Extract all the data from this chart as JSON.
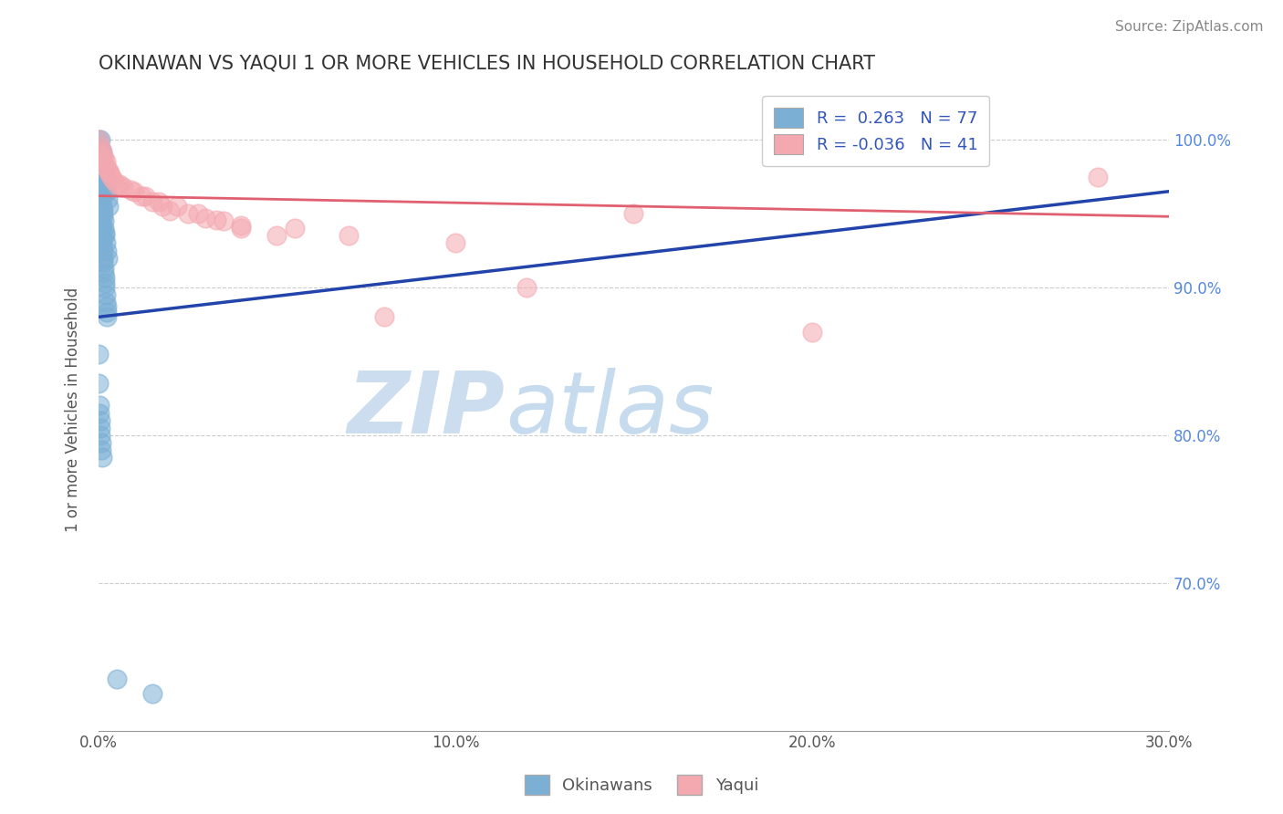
{
  "title": "OKINAWAN VS YAQUI 1 OR MORE VEHICLES IN HOUSEHOLD CORRELATION CHART",
  "source_text": "Source: ZipAtlas.com",
  "ylabel": "1 or more Vehicles in Household",
  "xlim": [
    0.0,
    30.0
  ],
  "ylim": [
    60.0,
    103.5
  ],
  "xticks": [
    0.0,
    10.0,
    20.0,
    30.0
  ],
  "yticks_right": [
    70.0,
    80.0,
    90.0,
    100.0
  ],
  "okinawan_R": 0.263,
  "okinawan_N": 77,
  "yaqui_R": -0.036,
  "yaqui_N": 41,
  "okinawan_color": "#7bafd4",
  "yaqui_color": "#f4a8b0",
  "okinawan_line_color": "#2244aa",
  "yaqui_line_color": "#e06070",
  "legend_text_color": "#3355bb",
  "watermark_color": "#ccddf0",
  "background_color": "#ffffff",
  "grid_color": "#cccccc",
  "title_color": "#333333",
  "ok_x": [
    0.0,
    0.0,
    0.0,
    0.0,
    0.05,
    0.05,
    0.07,
    0.08,
    0.1,
    0.1,
    0.12,
    0.13,
    0.15,
    0.15,
    0.17,
    0.18,
    0.2,
    0.22,
    0.25,
    0.27,
    0.0,
    0.02,
    0.03,
    0.04,
    0.05,
    0.06,
    0.07,
    0.08,
    0.09,
    0.1,
    0.11,
    0.12,
    0.13,
    0.15,
    0.16,
    0.17,
    0.18,
    0.2,
    0.22,
    0.25,
    0.0,
    0.01,
    0.02,
    0.03,
    0.04,
    0.05,
    0.06,
    0.07,
    0.08,
    0.09,
    0.1,
    0.11,
    0.12,
    0.13,
    0.14,
    0.15,
    0.16,
    0.17,
    0.18,
    0.19,
    0.2,
    0.21,
    0.22,
    0.23,
    0.24,
    0.0,
    0.01,
    0.02,
    0.03,
    0.04,
    0.05,
    0.06,
    0.07,
    0.08,
    0.09,
    0.5,
    1.5
  ],
  "ok_y": [
    100.0,
    99.5,
    99.2,
    98.8,
    100.0,
    99.0,
    99.3,
    98.5,
    99.1,
    98.0,
    98.3,
    97.8,
    98.0,
    97.2,
    97.5,
    97.0,
    96.8,
    96.5,
    96.0,
    95.5,
    98.5,
    98.0,
    97.5,
    97.2,
    96.8,
    96.5,
    96.0,
    95.7,
    95.3,
    95.0,
    95.5,
    95.2,
    94.8,
    94.5,
    94.0,
    93.7,
    93.5,
    93.0,
    92.5,
    92.0,
    97.0,
    96.5,
    96.2,
    95.8,
    95.5,
    95.0,
    94.7,
    94.3,
    94.0,
    93.5,
    93.2,
    92.8,
    92.5,
    92.0,
    91.7,
    91.3,
    91.0,
    90.7,
    90.3,
    90.0,
    89.5,
    89.0,
    88.7,
    88.3,
    88.0,
    85.5,
    83.5,
    82.0,
    81.5,
    81.0,
    80.5,
    80.0,
    79.5,
    79.0,
    78.5,
    63.5,
    62.5
  ],
  "yq_x": [
    0.0,
    0.05,
    0.1,
    0.15,
    0.2,
    0.25,
    0.3,
    0.35,
    0.5,
    0.7,
    1.0,
    1.2,
    1.5,
    1.8,
    2.0,
    2.5,
    3.0,
    3.5,
    4.0,
    5.0,
    0.08,
    0.12,
    0.18,
    0.28,
    0.4,
    0.6,
    0.9,
    1.3,
    1.7,
    2.2,
    2.8,
    3.3,
    4.0,
    5.5,
    7.0,
    8.0,
    10.0,
    12.0,
    15.0,
    20.0,
    28.0
  ],
  "yq_y": [
    100.0,
    99.5,
    99.2,
    98.8,
    98.5,
    98.0,
    97.8,
    97.5,
    97.0,
    96.8,
    96.5,
    96.2,
    95.8,
    95.5,
    95.2,
    95.0,
    94.7,
    94.5,
    94.0,
    93.5,
    99.0,
    98.6,
    98.2,
    97.8,
    97.3,
    97.0,
    96.6,
    96.2,
    95.8,
    95.5,
    95.0,
    94.6,
    94.2,
    94.0,
    93.5,
    88.0,
    93.0,
    90.0,
    95.0,
    87.0,
    97.5
  ],
  "ok_line_x0": 0.0,
  "ok_line_y0": 88.0,
  "ok_line_x1": 30.0,
  "ok_line_y1": 96.5,
  "yq_line_x0": 0.0,
  "yq_line_y0": 96.2,
  "yq_line_x1": 30.0,
  "yq_line_y1": 94.8
}
